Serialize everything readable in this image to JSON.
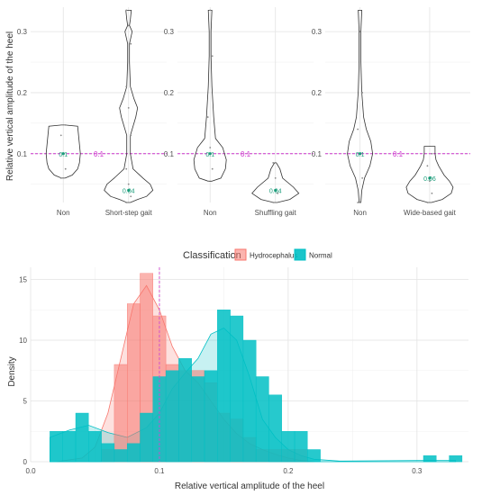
{
  "chart_data": [
    {
      "type": "violin",
      "ylabel": "Relative vertical amplitude of the heel",
      "ylim": [
        0.02,
        0.34
      ],
      "yticks": [
        "0.1",
        "0.2",
        "0.3"
      ],
      "grid": true,
      "reference_line": {
        "value": 0.1,
        "label": "0.1",
        "color": "#cc33cc",
        "style": "dashed"
      },
      "panels": [
        {
          "categories": [
            "Non",
            "Short-step gait"
          ],
          "medians": [
            {
              "value": 0.1,
              "label": "0.1"
            },
            {
              "value": 0.04,
              "label": "0.04"
            }
          ]
        },
        {
          "categories": [
            "Non",
            "Shuffling gait"
          ],
          "medians": [
            {
              "value": 0.1,
              "label": "0.1"
            },
            {
              "value": 0.04,
              "label": "0.04"
            }
          ]
        },
        {
          "categories": [
            "Non",
            "Wide-based gait"
          ],
          "medians": [
            {
              "value": 0.1,
              "label": "0.1"
            },
            {
              "value": 0.06,
              "label": "0.06"
            }
          ]
        }
      ]
    },
    {
      "type": "histogram_density",
      "xlabel": "Relative vertical amplitude of the heel",
      "ylabel": "Density",
      "xlim": [
        0.0,
        0.34
      ],
      "ylim": [
        0,
        16
      ],
      "xticks": [
        "0.0",
        "0.1",
        "0.2",
        "0.3"
      ],
      "yticks": [
        "0",
        "5",
        "10",
        "15"
      ],
      "legend": {
        "title": "Classification",
        "position": "top"
      },
      "vline": 0.1,
      "bin_width": 0.01,
      "bin_starts": [
        0.015,
        0.025,
        0.035,
        0.045,
        0.055,
        0.065,
        0.075,
        0.085,
        0.095,
        0.105,
        0.115,
        0.125,
        0.135,
        0.145,
        0.155,
        0.165,
        0.175,
        0.185,
        0.195,
        0.205,
        0.215,
        0.225,
        0.235,
        0.245,
        0.255,
        0.265,
        0.275,
        0.285,
        0.295,
        0.305,
        0.315,
        0.325
      ],
      "series": [
        {
          "name": "Hydrocephalus",
          "color": "#f8766d",
          "values": [
            0,
            0,
            0,
            0,
            1.0,
            8.0,
            13.0,
            15.5,
            12.0,
            8.0,
            7.5,
            7.5,
            6.5,
            4.0,
            3.5,
            2.0,
            1.0,
            1.0,
            1.0,
            1.0,
            0,
            0,
            0,
            0,
            0,
            0,
            0,
            0,
            0,
            0,
            0,
            0
          ],
          "density": [
            [
              0.02,
              0.0
            ],
            [
              0.04,
              0.3
            ],
            [
              0.05,
              1.2
            ],
            [
              0.06,
              4.0
            ],
            [
              0.07,
              8.5
            ],
            [
              0.08,
              13.0
            ],
            [
              0.09,
              14.5
            ],
            [
              0.1,
              12.5
            ],
            [
              0.11,
              9.5
            ],
            [
              0.12,
              7.5
            ],
            [
              0.13,
              6.5
            ],
            [
              0.14,
              5.0
            ],
            [
              0.15,
              3.5
            ],
            [
              0.16,
              2.3
            ],
            [
              0.17,
              1.5
            ],
            [
              0.18,
              1.0
            ],
            [
              0.19,
              0.6
            ],
            [
              0.2,
              0.3
            ],
            [
              0.21,
              0.1
            ],
            [
              0.22,
              0.0
            ]
          ]
        },
        {
          "name": "Normal",
          "color": "#00bfc4",
          "values": [
            2.5,
            2.5,
            4.0,
            2.5,
            1.5,
            1.0,
            1.5,
            4.0,
            7.0,
            7.5,
            8.5,
            7.0,
            7.5,
            12.5,
            12.0,
            10.0,
            7.0,
            5.5,
            2.5,
            2.5,
            1.0,
            0,
            0,
            0,
            0,
            0,
            0,
            0,
            0,
            0.5,
            0,
            0.5
          ],
          "density": [
            [
              0.015,
              2.0
            ],
            [
              0.03,
              2.6
            ],
            [
              0.045,
              3.0
            ],
            [
              0.06,
              2.4
            ],
            [
              0.075,
              2.0
            ],
            [
              0.09,
              2.8
            ],
            [
              0.1,
              4.0
            ],
            [
              0.11,
              6.0
            ],
            [
              0.12,
              7.3
            ],
            [
              0.13,
              8.5
            ],
            [
              0.14,
              10.5
            ],
            [
              0.15,
              11.0
            ],
            [
              0.16,
              10.0
            ],
            [
              0.17,
              7.0
            ],
            [
              0.18,
              3.5
            ],
            [
              0.19,
              2.0
            ],
            [
              0.2,
              1.0
            ],
            [
              0.21,
              0.5
            ],
            [
              0.22,
              0.2
            ],
            [
              0.24,
              0.05
            ],
            [
              0.3,
              0.1
            ],
            [
              0.33,
              0.1
            ]
          ]
        }
      ]
    }
  ]
}
